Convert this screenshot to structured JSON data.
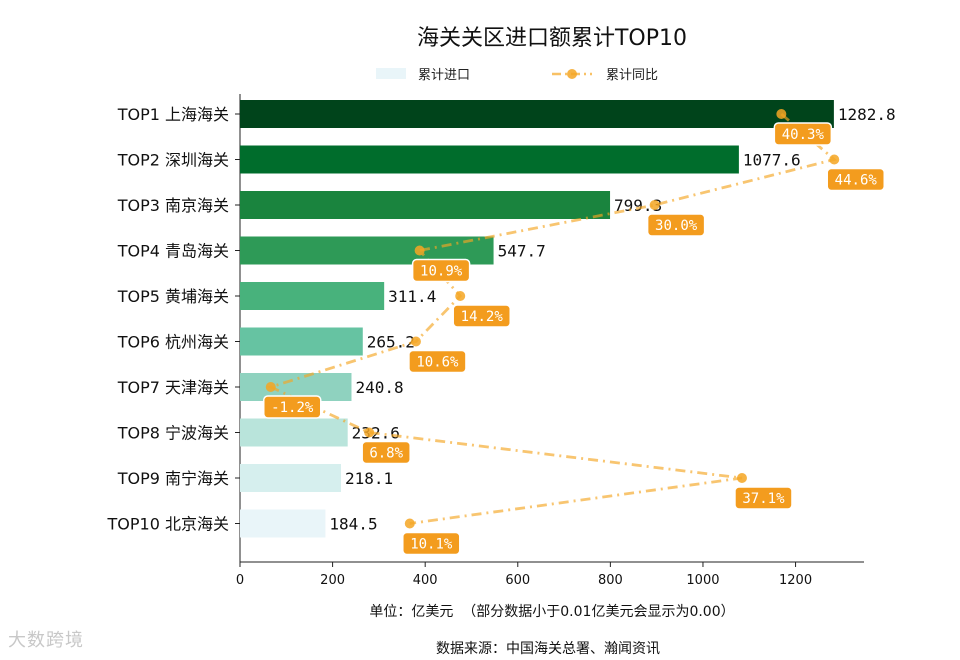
{
  "chart_data": {
    "type": "bar",
    "orientation": "horizontal",
    "title": "海关关区进口额累计TOP10",
    "categories": [
      "TOP1 上海海关",
      "TOP2 深圳海关",
      "TOP3 南京海关",
      "TOP4 青岛海关",
      "TOP5 黄埔海关",
      "TOP6 杭州海关",
      "TOP7 天津海关",
      "TOP8 宁波海关",
      "TOP9 南宁海关",
      "TOP10 北京海关"
    ],
    "series": [
      {
        "name": "累计进口",
        "type": "bar",
        "values": [
          1282.8,
          1077.6,
          799.3,
          547.7,
          311.4,
          265.2,
          240.8,
          232.6,
          218.1,
          184.5
        ],
        "value_labels": [
          "1282.8",
          "1077.6",
          "799.3",
          "547.7",
          "311.4",
          "265.2",
          "240.8",
          "232.6",
          "218.1",
          "184.5"
        ],
        "colors": [
          "#00441b",
          "#006d2c",
          "#1a843e",
          "#2e9a57",
          "#48b27c",
          "#66c3a2",
          "#8fd2bf",
          "#b9e4db",
          "#d6efee",
          "#e9f5f9"
        ]
      },
      {
        "name": "累计同比",
        "type": "line",
        "values": [
          40.3,
          44.6,
          30.0,
          10.9,
          14.2,
          10.6,
          -1.2,
          6.8,
          37.1,
          10.1
        ],
        "value_labels": [
          "40.3%",
          "44.6%",
          "30.0%",
          "10.9%",
          "14.2%",
          "10.6%",
          "-1.2%",
          "6.8%",
          "37.1%",
          "10.1%"
        ],
        "color": "#f5a623"
      }
    ],
    "xlim": [
      0,
      1350
    ],
    "xticks": [
      0,
      200,
      400,
      600,
      800,
      1000,
      1200
    ],
    "xtick_labels": [
      "0",
      "200",
      "400",
      "600",
      "800",
      "1000",
      "1200"
    ],
    "line_axis_range": [
      -3.7,
      47.1
    ],
    "xlabel": "单位：亿美元  （部分数据小于0.01亿美元会显示为0.00）",
    "source": "数据来源：中国海关总署、瀚闻资讯",
    "legend_position": "top",
    "legend_bar_color": "#e9f5f9"
  },
  "watermark": "大数跨境"
}
